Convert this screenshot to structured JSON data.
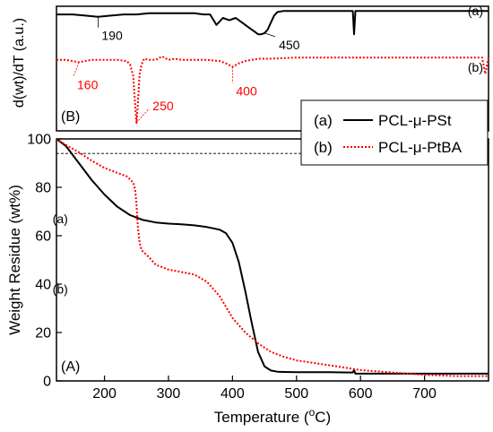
{
  "colors": {
    "series_a": "#000000",
    "series_b": "#ff0000",
    "axis": "#000000"
  },
  "chart_data": [
    {
      "panel": "B",
      "panel_label": "(B)",
      "type": "line",
      "ylabel": "d(wt)/dT (a.u.)",
      "xlim": [
        125,
        800
      ],
      "ylim": [
        0,
        1
      ],
      "y_ticks_shown": false,
      "grid": false,
      "series": [
        {
          "id": "a",
          "tag": "(a)",
          "color": "#000000",
          "style": "solid",
          "x": [
            125,
            150,
            170,
            190,
            210,
            230,
            250,
            270,
            290,
            300,
            320,
            340,
            355,
            365,
            375,
            385,
            395,
            405,
            415,
            425,
            435,
            440,
            445,
            450,
            455,
            460,
            465,
            470,
            480,
            500,
            520,
            540,
            560,
            580,
            588,
            590,
            592,
            594,
            600,
            620,
            650,
            700,
            750,
            800
          ],
          "y": [
            0.93,
            0.93,
            0.92,
            0.91,
            0.92,
            0.93,
            0.93,
            0.94,
            0.94,
            0.94,
            0.94,
            0.94,
            0.93,
            0.93,
            0.84,
            0.9,
            0.88,
            0.9,
            0.86,
            0.82,
            0.78,
            0.76,
            0.76,
            0.77,
            0.8,
            0.86,
            0.92,
            0.95,
            0.96,
            0.96,
            0.96,
            0.96,
            0.96,
            0.96,
            0.96,
            0.76,
            0.96,
            0.96,
            0.96,
            0.96,
            0.96,
            0.96,
            0.96,
            0.96
          ]
        },
        {
          "id": "b",
          "tag": "(b)",
          "color": "#ff0000",
          "style": "dotted",
          "x": [
            125,
            140,
            150,
            160,
            170,
            180,
            200,
            220,
            235,
            240,
            245,
            248,
            250,
            252,
            255,
            258,
            262,
            270,
            280,
            290,
            300,
            310,
            320,
            340,
            360,
            380,
            390,
            400,
            410,
            420,
            440,
            460,
            500,
            550,
            600,
            650,
            700,
            750,
            790,
            795,
            800
          ],
          "y": [
            0.54,
            0.54,
            0.53,
            0.52,
            0.53,
            0.54,
            0.54,
            0.54,
            0.53,
            0.5,
            0.4,
            0.15,
            0.0,
            0.15,
            0.42,
            0.5,
            0.55,
            0.54,
            0.54,
            0.57,
            0.54,
            0.55,
            0.54,
            0.54,
            0.54,
            0.53,
            0.51,
            0.48,
            0.51,
            0.53,
            0.55,
            0.55,
            0.56,
            0.56,
            0.56,
            0.56,
            0.56,
            0.56,
            0.56,
            0.42,
            0.56
          ]
        }
      ],
      "annotations": [
        {
          "text": "190",
          "x": 190,
          "color": "#000000"
        },
        {
          "text": "450",
          "x": 450,
          "color": "#000000"
        },
        {
          "text": "160",
          "x": 160,
          "color": "#ff0000"
        },
        {
          "text": "400",
          "x": 400,
          "color": "#ff0000"
        },
        {
          "text": "250",
          "x": 250,
          "color": "#ff0000"
        }
      ]
    },
    {
      "panel": "A",
      "panel_label": "(A)",
      "type": "line",
      "xlabel_main": "Temperature (",
      "xlabel_sup": "o",
      "xlabel_tail": "C)",
      "ylabel": "Weight Residue (wt%)",
      "xlim": [
        125,
        800
      ],
      "ylim": [
        0,
        100
      ],
      "x_ticks": [
        "200",
        "300",
        "400",
        "500",
        "600",
        "700"
      ],
      "y_ticks": [
        "0",
        "20",
        "40",
        "60",
        "80",
        "100"
      ],
      "reference_line_y": 94,
      "grid": false,
      "legend_position": "top-right",
      "legend": [
        {
          "tag": "(a)",
          "label": "PCL-μ-PSt"
        },
        {
          "tag": "(b)",
          "label": "PCL-μ-PtBA"
        }
      ],
      "series": [
        {
          "id": "a",
          "tag": "(a)",
          "name": "PCL-μ-PSt",
          "color": "#000000",
          "style": "solid",
          "x": [
            125,
            140,
            160,
            180,
            200,
            220,
            240,
            260,
            280,
            300,
            320,
            340,
            360,
            380,
            390,
            400,
            410,
            420,
            430,
            440,
            450,
            460,
            470,
            480,
            500,
            550,
            588,
            590,
            592,
            600,
            650,
            700,
            750,
            800
          ],
          "y": [
            100,
            97,
            90,
            83,
            77,
            72,
            68.5,
            66.5,
            65.5,
            65,
            64.7,
            64.3,
            63.6,
            62.5,
            61,
            57,
            49,
            37,
            24,
            12,
            6,
            4.3,
            3.8,
            3.7,
            3.6,
            3.6,
            3.5,
            4.5,
            3,
            3,
            3,
            3,
            3,
            3
          ]
        },
        {
          "id": "b",
          "tag": "(b)",
          "name": "PCL-μ-PtBA",
          "color": "#ff0000",
          "style": "dotted",
          "x": [
            125,
            140,
            160,
            180,
            200,
            220,
            235,
            245,
            248,
            250,
            252,
            255,
            258,
            262,
            270,
            280,
            300,
            320,
            340,
            360,
            380,
            400,
            420,
            440,
            460,
            480,
            500,
            550,
            600,
            650,
            700,
            750,
            800
          ],
          "y": [
            100,
            97.5,
            94.5,
            91,
            88,
            86,
            84.5,
            82,
            79,
            73,
            64,
            57,
            54,
            53,
            51,
            48,
            46,
            45,
            44,
            41,
            35,
            26,
            20,
            15.5,
            12,
            10,
            8.5,
            6.5,
            4.5,
            3.5,
            2.5,
            2,
            2
          ]
        }
      ],
      "curve_labels": [
        {
          "text": "(a)",
          "x": 390,
          "y": 67
        },
        {
          "text": "(b)",
          "x": 390,
          "y": 38
        }
      ]
    }
  ]
}
